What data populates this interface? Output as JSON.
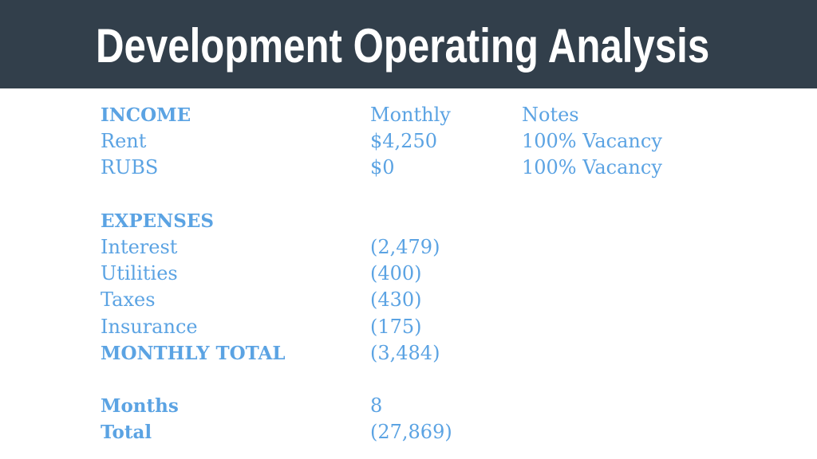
{
  "title": "Development Operating Analysis",
  "colors": {
    "header_bg": "#323f4b",
    "title_text": "#ffffff",
    "body_text": "#5ba3e3",
    "background": "#ffffff"
  },
  "income": {
    "header": "INCOME",
    "monthly_header": "Monthly",
    "notes_header": "Notes",
    "rows": [
      {
        "label": "Rent",
        "monthly": "$4,250",
        "notes": "100% Vacancy"
      },
      {
        "label": "RUBS",
        "monthly": "$0",
        "notes": "100% Vacancy"
      }
    ]
  },
  "expenses": {
    "header": "EXPENSES",
    "rows": [
      {
        "label": "Interest",
        "monthly": "(2,479)"
      },
      {
        "label": "Utilities",
        "monthly": "(400)"
      },
      {
        "label": "Taxes",
        "monthly": "(430)"
      },
      {
        "label": "Insurance",
        "monthly": "(175)"
      }
    ],
    "total_label": "MONTHLY TOTAL",
    "total_value": "(3,484)"
  },
  "summary": {
    "months_label": "Months",
    "months_value": "8",
    "total_label": "Total",
    "total_value": "(27,869)"
  }
}
